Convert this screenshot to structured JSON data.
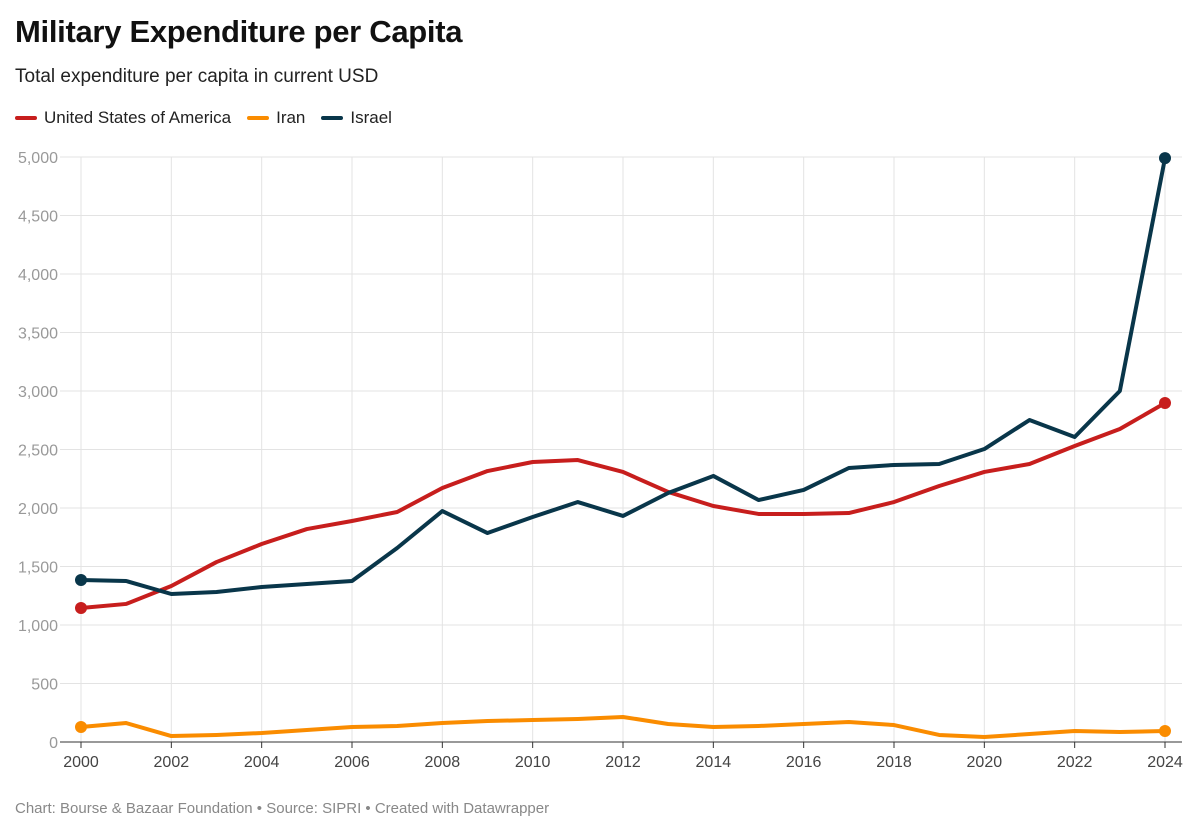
{
  "chart_data": {
    "type": "line",
    "title": "Military Expenditure per Capita",
    "subtitle": "Total expenditure per capita in current USD",
    "footer": "Chart: Bourse & Bazaar Foundation • Source: SIPRI • Created with Datawrapper",
    "legend_position": "top-left",
    "grid": true,
    "ylim": [
      0,
      5000
    ],
    "xlim": [
      2000,
      2024
    ],
    "y_ticks": [
      "0",
      "500",
      "1,000",
      "1,500",
      "2,000",
      "2,500",
      "3,000",
      "3,500",
      "4,000",
      "4,500",
      "5,000"
    ],
    "x_ticks": [
      "2000",
      "2002",
      "2004",
      "2006",
      "2008",
      "2010",
      "2012",
      "2014",
      "2016",
      "2018",
      "2020",
      "2022",
      "2024"
    ],
    "x": [
      2000,
      2001,
      2002,
      2003,
      2004,
      2005,
      2006,
      2007,
      2008,
      2009,
      2010,
      2011,
      2012,
      2013,
      2014,
      2015,
      2016,
      2017,
      2018,
      2019,
      2020,
      2021,
      2022,
      2023,
      2024
    ],
    "series": [
      {
        "name": "United States of America",
        "color": "#c71e1d",
        "values": [
          1145,
          1180,
          1333,
          1538,
          1692,
          1820,
          1889,
          1966,
          2171,
          2316,
          2393,
          2410,
          2308,
          2137,
          2017,
          1949,
          1949,
          1957,
          2051,
          2188,
          2308,
          2376,
          2530,
          2675,
          2897
        ]
      },
      {
        "name": "Iran",
        "color": "#fa8c00",
        "values": [
          128,
          162,
          51,
          60,
          77,
          103,
          128,
          137,
          162,
          179,
          188,
          197,
          214,
          154,
          128,
          137,
          154,
          171,
          145,
          60,
          43,
          68,
          94,
          85,
          94
        ]
      },
      {
        "name": "Israel",
        "color": "#09364a",
        "values": [
          1385,
          1376,
          1265,
          1282,
          1325,
          1350,
          1376,
          1658,
          1974,
          1786,
          1923,
          2051,
          1932,
          2128,
          2274,
          2068,
          2154,
          2342,
          2368,
          2376,
          2504,
          2752,
          2607,
          3000,
          4990
        ]
      }
    ]
  }
}
